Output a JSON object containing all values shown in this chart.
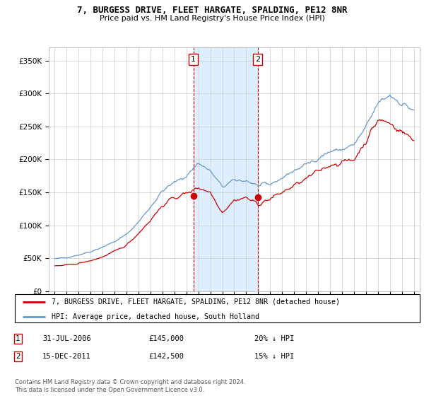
{
  "title": "7, BURGESS DRIVE, FLEET HARGATE, SPALDING, PE12 8NR",
  "subtitle": "Price paid vs. HM Land Registry's House Price Index (HPI)",
  "legend_line1": "7, BURGESS DRIVE, FLEET HARGATE, SPALDING, PE12 8NR (detached house)",
  "legend_line2": "HPI: Average price, detached house, South Holland",
  "purchase1_date": "31-JUL-2006",
  "purchase1_price": "£145,000",
  "purchase1_pct": "20% ↓ HPI",
  "purchase2_date": "15-DEC-2011",
  "purchase2_price": "£142,500",
  "purchase2_pct": "15% ↓ HPI",
  "footer": "Contains HM Land Registry data © Crown copyright and database right 2024.\nThis data is licensed under the Open Government Licence v3.0.",
  "red_color": "#cc0000",
  "blue_color": "#6699cc",
  "shade_color": "#ddeeff",
  "ylim": [
    0,
    370000
  ],
  "yticks": [
    0,
    50000,
    100000,
    150000,
    200000,
    250000,
    300000,
    350000
  ],
  "ytick_labels": [
    "£0",
    "£50K",
    "£100K",
    "£150K",
    "£200K",
    "£250K",
    "£300K",
    "£350K"
  ],
  "purchase1_x": 2006.58,
  "purchase2_x": 2011.96,
  "purchase1_y": 145000,
  "purchase2_y": 142500,
  "xlim": [
    1994.5,
    2025.5
  ],
  "xticks": [
    1995,
    1996,
    1997,
    1998,
    1999,
    2000,
    2001,
    2002,
    2003,
    2004,
    2005,
    2006,
    2007,
    2008,
    2009,
    2010,
    2011,
    2012,
    2013,
    2014,
    2015,
    2016,
    2017,
    2018,
    2019,
    2020,
    2021,
    2022,
    2023,
    2024,
    2025
  ]
}
